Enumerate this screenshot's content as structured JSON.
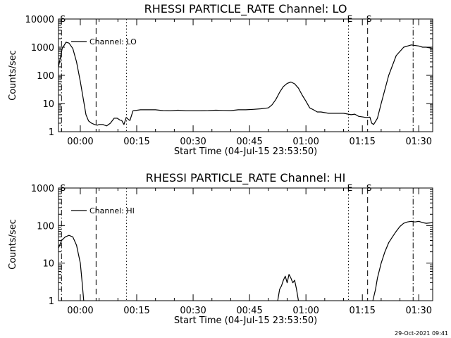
{
  "chart_data": [
    {
      "type": "line",
      "title": "RHESSI PARTICLE_RATE Channel: LO",
      "xlabel": "Start Time (04-Jul-15 23:53:50)",
      "ylabel": "Counts/sec",
      "yscale": "log",
      "ylim": [
        1,
        10000
      ],
      "xlim_minutes": [
        -5.8,
        93.7
      ],
      "ytick_labels": [
        "10000",
        "1000",
        "100",
        "10",
        "1"
      ],
      "ytick_values": [
        10000,
        1000,
        100,
        10,
        1
      ],
      "xtick_labels": [
        "00:00",
        "00:15",
        "00:30",
        "00:45",
        "01:00",
        "01:15",
        "01:30"
      ],
      "xtick_values": [
        0,
        15,
        30,
        45,
        60,
        75,
        90
      ],
      "legend": {
        "position": "top-left",
        "entries": [
          "Channel: LO"
        ]
      },
      "grid": false,
      "series": [
        {
          "name": "Channel: LO",
          "x": [
            -5.8,
            -4.8,
            -3.8,
            -3,
            -2,
            -1,
            0,
            1,
            1.5,
            2.2,
            3,
            3.8,
            4.5,
            5,
            6,
            7,
            8,
            9,
            9.8,
            10.5,
            11,
            11.6,
            12.2,
            12.8,
            13.2,
            14,
            16,
            18,
            20,
            22,
            24,
            26,
            28,
            30,
            32,
            34,
            36,
            38,
            40,
            42,
            44,
            46,
            48,
            50,
            51,
            52,
            53,
            54,
            55,
            56,
            57,
            58,
            59,
            60,
            61,
            62,
            63,
            64,
            66,
            68,
            70,
            72,
            73,
            74,
            76,
            77,
            77.5,
            78,
            79,
            80,
            82,
            84,
            86,
            88,
            90,
            91,
            92,
            93.7
          ],
          "y": [
            200,
            900,
            1500,
            1400,
            900,
            300,
            60,
            10,
            4,
            2.4,
            2,
            1.8,
            1.7,
            1.8,
            1.8,
            1.6,
            2,
            3,
            3,
            2.6,
            2.5,
            1.8,
            3.2,
            2.7,
            2.5,
            5.5,
            6,
            6,
            6,
            5.6,
            5.5,
            5.8,
            5.5,
            5.5,
            5.5,
            5.6,
            5.8,
            5.7,
            5.6,
            6,
            6,
            6.2,
            6.5,
            7,
            9,
            14,
            25,
            40,
            52,
            58,
            50,
            35,
            20,
            12,
            7,
            6,
            5,
            5,
            4.5,
            4.5,
            4.5,
            4,
            4.2,
            3.5,
            3.2,
            3.3,
            2,
            1.8,
            3,
            10,
            100,
            500,
            1000,
            1200,
            1100,
            1000,
            1000,
            900
          ]
        }
      ],
      "vertical_markers": [
        {
          "x": -5.0,
          "style": "dash-dot",
          "label": "S"
        },
        {
          "x": 4.2,
          "style": "dashed",
          "label": ""
        },
        {
          "x": 12.3,
          "style": "dotted",
          "label": ""
        },
        {
          "x": 71.3,
          "style": "dotted",
          "label": "E"
        },
        {
          "x": 76.4,
          "style": "dashed",
          "label": "S"
        },
        {
          "x": 88.5,
          "style": "dash-dot",
          "label": ""
        }
      ]
    },
    {
      "type": "line",
      "title": "RHESSI PARTICLE_RATE Channel: HI",
      "xlabel": "Start Time (04-Jul-15 23:53:50)",
      "ylabel": "Counts/sec",
      "yscale": "log",
      "ylim": [
        1,
        1000
      ],
      "xlim_minutes": [
        -5.8,
        93.7
      ],
      "ytick_labels": [
        "1000",
        "100",
        "10",
        "1"
      ],
      "ytick_values": [
        1000,
        100,
        10,
        1
      ],
      "xtick_labels": [
        "00:00",
        "00:15",
        "00:30",
        "00:45",
        "01:00",
        "01:15",
        "01:30"
      ],
      "xtick_values": [
        0,
        15,
        30,
        45,
        60,
        75,
        90
      ],
      "legend": {
        "position": "top-left",
        "entries": [
          "Channel: HI"
        ]
      },
      "grid": false,
      "series": [
        {
          "name": "Channel: HI",
          "segments": [
            {
              "x": [
                -5.8,
                -5,
                -4,
                -3,
                -2,
                -1,
                0,
                0.5,
                0.9
              ],
              "y": [
                25,
                40,
                50,
                55,
                50,
                30,
                10,
                3,
                1
              ]
            },
            {
              "x": [
                52.5,
                53,
                53.5,
                54,
                54.5,
                55,
                55.5,
                56,
                56.5,
                57,
                57.5,
                58
              ],
              "y": [
                1,
                2,
                2.5,
                3.5,
                4.5,
                3,
                5,
                4,
                3,
                3.5,
                2,
                1
              ]
            },
            {
              "x": [
                77.8,
                78.5,
                79,
                80,
                81,
                82,
                83,
                84,
                85,
                86,
                87,
                88,
                89,
                90,
                91,
                92,
                93.7
              ],
              "y": [
                1,
                2,
                4,
                10,
                20,
                35,
                50,
                70,
                95,
                115,
                125,
                130,
                125,
                130,
                120,
                115,
                120
              ]
            }
          ]
        }
      ],
      "vertical_markers": [
        {
          "x": -5.0,
          "style": "dash-dot",
          "label": "S"
        },
        {
          "x": 4.2,
          "style": "dashed",
          "label": ""
        },
        {
          "x": 12.3,
          "style": "dotted",
          "label": ""
        },
        {
          "x": 71.3,
          "style": "dotted",
          "label": "E"
        },
        {
          "x": 76.4,
          "style": "dashed",
          "label": "S"
        },
        {
          "x": 88.5,
          "style": "dash-dot",
          "label": ""
        }
      ]
    }
  ],
  "footer": {
    "timestamp": "29-Oct-2021 09:41"
  }
}
